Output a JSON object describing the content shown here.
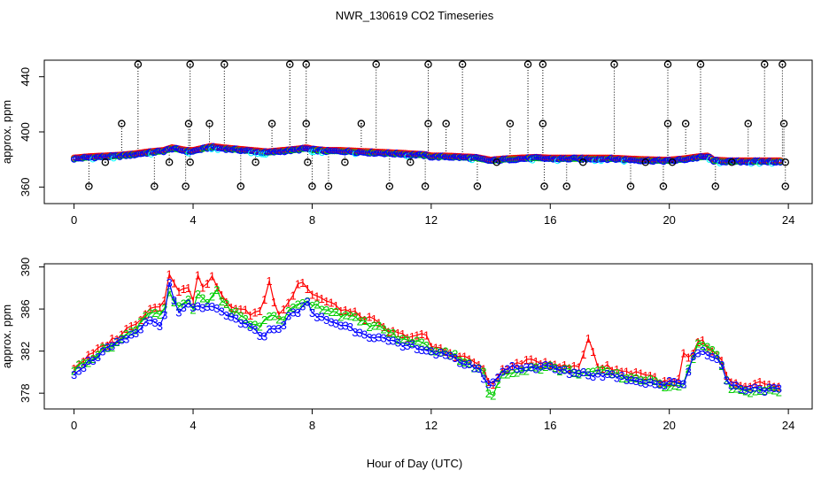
{
  "title": "NWR_130619  CO2 Timeseries",
  "xlabel": "Hour of Day (UTC)",
  "colors": {
    "axis": "#000000",
    "black": "#000000",
    "red": "#ff0000",
    "green": "#00cd00",
    "blue": "#0000ff",
    "cyan": "#00ffff"
  },
  "chart_data": [
    {
      "type": "scatter",
      "panel": "top",
      "title": "",
      "xlabel": "",
      "ylabel": "approx. ppm",
      "xlim": [
        -1,
        24.8
      ],
      "ylim": [
        348,
        452
      ],
      "xticks": [
        0,
        4,
        8,
        12,
        16,
        20,
        24
      ],
      "yticks": [
        360,
        400,
        440
      ],
      "tick_labels_x": [
        "0",
        "4",
        "8",
        "12",
        "16",
        "20",
        "24"
      ],
      "tick_labels_y": [
        "360",
        "400",
        "440"
      ],
      "baseline_profile": {
        "x": [
          0,
          0.5,
          1.0,
          1.5,
          2.0,
          2.5,
          3.0,
          3.3,
          3.8,
          4.0,
          4.2,
          4.6,
          5.0,
          5.5,
          6.0,
          6.5,
          7.0,
          7.5,
          7.8,
          8.0,
          8.5,
          9.0,
          10.0,
          11.0,
          11.8,
          12.0,
          12.5,
          13.0,
          13.5,
          14.0,
          14.5,
          15.0,
          15.5,
          16.0,
          17.0,
          18.0,
          19.0,
          19.8,
          20.0,
          20.5,
          21.0,
          21.3,
          21.5,
          22.0,
          23.0,
          23.7
        ],
        "y": [
          380.5,
          381.5,
          382,
          382.5,
          383.5,
          385,
          386,
          388,
          386,
          386,
          387,
          389,
          388,
          387,
          386,
          385,
          386,
          387,
          388,
          387,
          386,
          386,
          385,
          384,
          383,
          382,
          382,
          381.5,
          381,
          379,
          380,
          380.5,
          381,
          380.5,
          380.5,
          380.5,
          379.5,
          379,
          379,
          380,
          381.5,
          382,
          379,
          378.5,
          378.5,
          378.5
        ]
      },
      "spikes_high": {
        "x": [
          2.15,
          3.9,
          5.05,
          7.25,
          7.8,
          10.15,
          11.9,
          13.05,
          15.25,
          15.75,
          18.15,
          19.95,
          21.05,
          23.2,
          23.8
        ],
        "y": [
          449,
          449,
          449,
          449,
          449,
          449,
          449,
          449,
          449,
          449,
          449,
          449,
          449,
          449,
          449
        ]
      },
      "spikes_mid": {
        "x": [
          1.6,
          3.85,
          4.55,
          6.65,
          7.8,
          9.65,
          11.9,
          12.5,
          14.65,
          15.75,
          19.95,
          20.55,
          22.65,
          23.85
        ],
        "y": [
          406,
          406,
          406,
          406,
          406,
          406,
          406,
          406,
          406,
          406,
          406,
          406,
          406,
          406
        ]
      },
      "spikes_low": {
        "x": [
          0.5,
          2.7,
          3.75,
          5.6,
          8.0,
          8.55,
          10.6,
          11.8,
          13.55,
          15.8,
          16.55,
          18.7,
          19.8,
          21.55,
          23.9
        ],
        "y": [
          360.5,
          360.5,
          360.5,
          360.5,
          360.5,
          360.5,
          360.5,
          360.5,
          360.5,
          360.5,
          360.5,
          360.5,
          360.5,
          360.5,
          360.5
        ]
      },
      "spikes_near": {
        "x": [
          1.05,
          3.2,
          3.9,
          6.1,
          7.85,
          9.1,
          11.3,
          14.2,
          17.1,
          19.2,
          20.1,
          22.1,
          23.9
        ],
        "y": [
          378,
          378,
          378,
          378,
          378,
          378,
          378,
          378,
          378,
          378,
          378,
          378,
          378
        ]
      }
    },
    {
      "type": "line",
      "panel": "bottom",
      "title": "",
      "xlabel": "Hour of Day (UTC)",
      "ylabel": "approx. ppm",
      "xlim": [
        -1,
        24.8
      ],
      "ylim": [
        376.5,
        390.3
      ],
      "xticks": [
        0,
        4,
        8,
        12,
        16,
        20,
        24
      ],
      "yticks": [
        378,
        382,
        386,
        390
      ],
      "tick_labels_x": [
        "0",
        "4",
        "8",
        "12",
        "16",
        "20",
        "24"
      ],
      "tick_labels_y": [
        "378",
        "382",
        "386",
        "390"
      ],
      "series": [
        {
          "name": "1",
          "color": "red",
          "x": [
            0,
            0.5,
            1.0,
            1.5,
            2.0,
            2.5,
            3.0,
            3.2,
            3.5,
            3.8,
            4.0,
            4.2,
            4.4,
            4.6,
            4.8,
            5.0,
            5.2,
            5.5,
            6.0,
            6.3,
            6.6,
            6.8,
            7.0,
            7.3,
            7.6,
            7.8,
            8.0,
            8.3,
            8.6,
            9.0,
            9.5,
            10.0,
            10.5,
            11.0,
            11.5,
            11.8,
            12.0,
            12.5,
            13.0,
            13.5,
            13.8,
            14.0,
            14.3,
            14.7,
            15.0,
            15.5,
            15.8,
            16.0,
            16.5,
            17.0,
            17.3,
            17.6,
            18.0,
            18.5,
            19.0,
            19.5,
            19.8,
            20.0,
            20.3,
            20.5,
            20.7,
            20.9,
            21.1,
            21.3,
            21.5,
            21.7,
            22.0,
            22.5,
            23.0,
            23.5,
            23.7
          ],
          "y": [
            380.5,
            381.5,
            382.5,
            383.5,
            384.5,
            386,
            386.5,
            389.5,
            387.5,
            388.5,
            387,
            389.5,
            387.5,
            389.5,
            388,
            387,
            386.5,
            386,
            385.5,
            386,
            389,
            385.5,
            386,
            387,
            389,
            388,
            387.5,
            387,
            386.5,
            386,
            385.5,
            385,
            384,
            383.5,
            383.5,
            383.5,
            382.5,
            382,
            381.5,
            381,
            380,
            378.5,
            380,
            380.5,
            381,
            381,
            381,
            381,
            380.5,
            380.5,
            383.5,
            380.5,
            380.5,
            380,
            380,
            379.5,
            379,
            379,
            379,
            382,
            381,
            382.5,
            383,
            382,
            382,
            381.5,
            379,
            378.5,
            379,
            378.5,
            378.5
          ]
        },
        {
          "name": "2",
          "color": "green",
          "x": [
            0,
            0.5,
            1.0,
            1.5,
            2.0,
            2.5,
            3.0,
            3.2,
            3.5,
            3.8,
            4.0,
            4.2,
            4.5,
            4.8,
            5.0,
            5.5,
            6.0,
            6.3,
            6.6,
            7.0,
            7.3,
            7.6,
            7.8,
            8.0,
            8.5,
            9.0,
            9.5,
            10.0,
            10.5,
            11.0,
            11.5,
            12.0,
            12.5,
            13.0,
            13.5,
            13.8,
            14.0,
            14.3,
            14.7,
            15.0,
            15.5,
            15.8,
            16.0,
            16.5,
            17.0,
            17.5,
            18.0,
            18.5,
            19.0,
            19.5,
            19.8,
            20.0,
            20.5,
            20.8,
            21.0,
            21.2,
            21.5,
            21.7,
            22.0,
            22.5,
            23.0,
            23.5,
            23.7
          ],
          "y": [
            380.3,
            381.2,
            382.2,
            383,
            384,
            385.8,
            385.5,
            387.5,
            386,
            387,
            386,
            387.5,
            386.5,
            388,
            386.5,
            385.5,
            384.5,
            384.5,
            385.5,
            385,
            386,
            386.5,
            387,
            386.5,
            386,
            385.5,
            385,
            384.5,
            384,
            383,
            383,
            382.2,
            382,
            381.3,
            380.5,
            379.8,
            377,
            379.5,
            380,
            380.3,
            380.5,
            380.5,
            380.5,
            380.2,
            380,
            380,
            380,
            379.5,
            379.5,
            379,
            378.8,
            378.8,
            379,
            381.5,
            383,
            382.5,
            382,
            381,
            378.5,
            378.3,
            378.3,
            378.2,
            378.2
          ]
        },
        {
          "name": "3",
          "color": "blue",
          "x": [
            0,
            0.5,
            1.0,
            1.5,
            2.0,
            2.5,
            3.0,
            3.2,
            3.5,
            3.8,
            4.0,
            4.2,
            4.5,
            4.8,
            5.0,
            5.5,
            6.0,
            6.3,
            6.6,
            7.0,
            7.3,
            7.6,
            7.8,
            8.0,
            8.5,
            9.0,
            9.5,
            10.0,
            10.5,
            11.0,
            11.5,
            12.0,
            12.5,
            13.0,
            13.5,
            13.8,
            14.0,
            14.3,
            14.7,
            15.0,
            15.5,
            15.8,
            16.0,
            16.5,
            17.0,
            17.5,
            18.0,
            18.5,
            19.0,
            19.5,
            19.8,
            20.0,
            20.5,
            20.8,
            21.0,
            21.2,
            21.5,
            21.7,
            22.0,
            22.5,
            23.0,
            23.5,
            23.7
          ],
          "y": [
            380,
            381,
            382,
            382.8,
            383.5,
            385,
            384.5,
            388.3,
            385.5,
            386.5,
            386,
            386.5,
            386,
            386,
            385.5,
            385,
            384,
            383.5,
            384,
            384.5,
            385.5,
            386,
            386.8,
            385.5,
            385,
            384.5,
            384,
            383.5,
            383,
            382.5,
            382.5,
            382,
            381.5,
            381,
            380.5,
            379.5,
            378.5,
            380,
            380.5,
            380.5,
            380.5,
            380.5,
            380.5,
            380,
            380,
            379.8,
            379.8,
            379.5,
            379.2,
            379,
            378.8,
            379,
            379,
            381.5,
            382,
            382,
            381.5,
            381,
            378.8,
            378.5,
            378.5,
            378.3,
            378.3
          ]
        }
      ]
    }
  ]
}
